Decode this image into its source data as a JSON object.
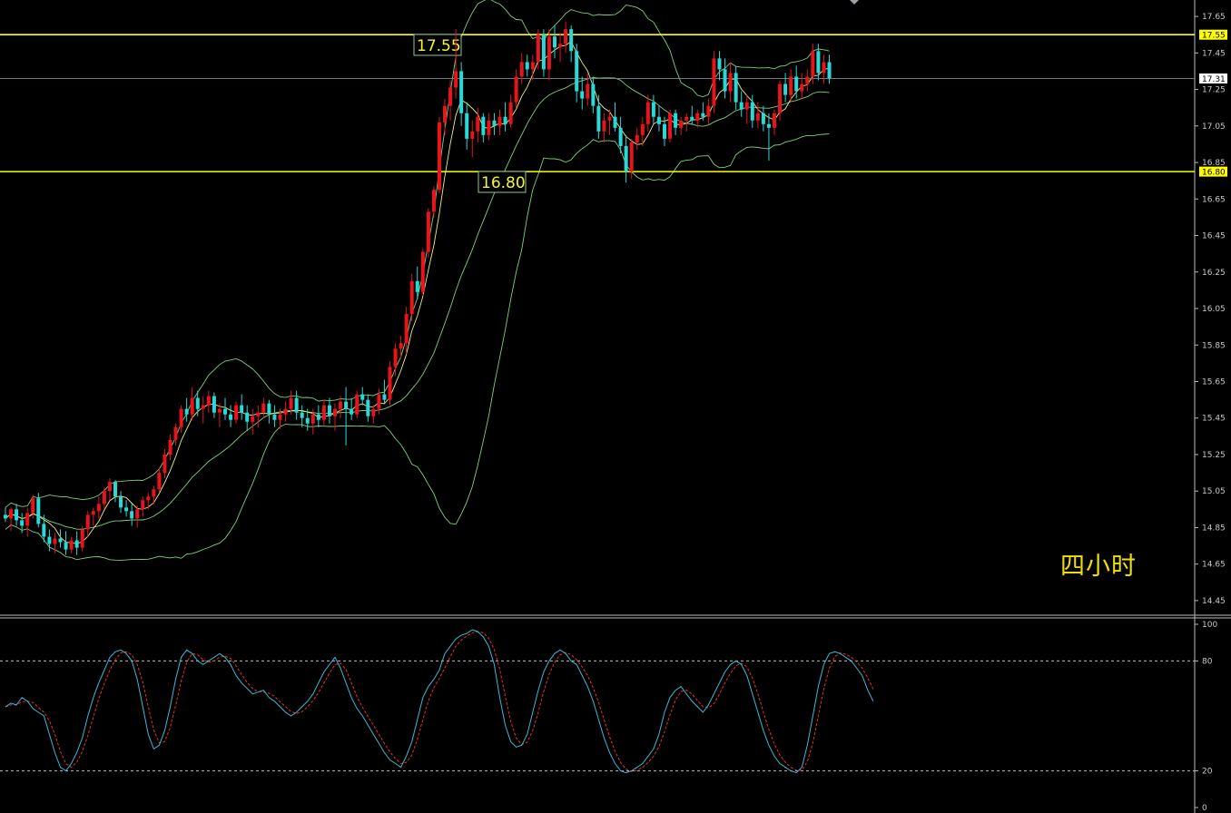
{
  "annotation": "四小时",
  "colors": {
    "background": "#000000",
    "bull": "#e8141c",
    "bear": "#2ad8d8",
    "bands": "#7ed07e",
    "mid": "#c0c060",
    "ma": "#f0f080",
    "level": "#ffff00",
    "stoch_k": "#3ab8d8",
    "stoch_d": "#e83030"
  },
  "chart_data": [
    {
      "type": "candlestick",
      "timeframe_label": "四小时",
      "ylim": [
        14.38,
        17.74
      ],
      "yticks": [
        "17.65",
        "17.45",
        "17.25",
        "17.05",
        "16.85",
        "16.65",
        "16.45",
        "16.25",
        "16.05",
        "15.85",
        "15.65",
        "15.45",
        "15.25",
        "15.05",
        "14.85",
        "14.65",
        "14.45"
      ],
      "horizontal_levels": [
        {
          "value": 17.55,
          "label": "17.55",
          "axis_tag": "17.55"
        },
        {
          "value": 16.8,
          "label": "16.80",
          "axis_tag": "16.80"
        }
      ],
      "current_price": "17.31",
      "current_value": 17.31,
      "candles": [
        [
          14.92,
          14.96,
          14.88,
          14.9
        ],
        [
          14.9,
          14.96,
          14.83,
          14.95
        ],
        [
          14.95,
          14.98,
          14.86,
          14.89
        ],
        [
          14.89,
          14.93,
          14.82,
          14.86
        ],
        [
          14.86,
          14.96,
          14.8,
          14.93
        ],
        [
          14.93,
          15.03,
          14.9,
          15.01
        ],
        [
          15.01,
          15.04,
          14.85,
          14.87
        ],
        [
          14.87,
          14.92,
          14.77,
          14.8
        ],
        [
          14.8,
          14.84,
          14.72,
          14.76
        ],
        [
          14.76,
          14.82,
          14.71,
          14.79
        ],
        [
          14.79,
          14.84,
          14.74,
          14.77
        ],
        [
          14.77,
          14.83,
          14.7,
          14.73
        ],
        [
          14.73,
          14.8,
          14.71,
          14.78
        ],
        [
          14.78,
          14.83,
          14.7,
          14.74
        ],
        [
          14.74,
          14.86,
          14.72,
          14.84
        ],
        [
          14.84,
          14.94,
          14.8,
          14.92
        ],
        [
          14.92,
          14.96,
          14.86,
          14.94
        ],
        [
          14.94,
          15.02,
          14.9,
          14.98
        ],
        [
          14.98,
          15.07,
          14.95,
          15.05
        ],
        [
          15.05,
          15.12,
          15.0,
          15.1
        ],
        [
          15.1,
          15.11,
          14.99,
          15.02
        ],
        [
          15.02,
          15.05,
          14.93,
          14.96
        ],
        [
          14.96,
          15.0,
          14.91,
          14.94
        ],
        [
          14.94,
          14.98,
          14.86,
          14.9
        ],
        [
          14.9,
          14.97,
          14.85,
          14.95
        ],
        [
          14.95,
          15.02,
          14.91,
          15.0
        ],
        [
          15.0,
          15.04,
          14.95,
          15.02
        ],
        [
          15.02,
          15.08,
          14.98,
          15.06
        ],
        [
          15.06,
          15.18,
          15.04,
          15.15
        ],
        [
          15.15,
          15.28,
          15.12,
          15.25
        ],
        [
          15.25,
          15.36,
          15.22,
          15.33
        ],
        [
          15.33,
          15.42,
          15.3,
          15.4
        ],
        [
          15.4,
          15.52,
          15.37,
          15.5
        ],
        [
          15.5,
          15.56,
          15.43,
          15.47
        ],
        [
          15.47,
          15.62,
          15.44,
          15.56
        ],
        [
          15.56,
          15.6,
          15.46,
          15.5
        ],
        [
          15.5,
          15.57,
          15.42,
          15.52
        ],
        [
          15.52,
          15.6,
          15.48,
          15.57
        ],
        [
          15.57,
          15.59,
          15.45,
          15.48
        ],
        [
          15.48,
          15.53,
          15.4,
          15.5
        ],
        [
          15.5,
          15.56,
          15.44,
          15.47
        ],
        [
          15.47,
          15.52,
          15.4,
          15.44
        ],
        [
          15.44,
          15.54,
          15.42,
          15.52
        ],
        [
          15.52,
          15.58,
          15.44,
          15.48
        ],
        [
          15.48,
          15.52,
          15.38,
          15.43
        ],
        [
          15.43,
          15.5,
          15.36,
          15.46
        ],
        [
          15.46,
          15.52,
          15.4,
          15.48
        ],
        [
          15.48,
          15.56,
          15.45,
          15.53
        ],
        [
          15.53,
          15.55,
          15.42,
          15.47
        ],
        [
          15.47,
          15.52,
          15.4,
          15.44
        ],
        [
          15.44,
          15.5,
          15.39,
          15.47
        ],
        [
          15.47,
          15.54,
          15.43,
          15.5
        ],
        [
          15.5,
          15.6,
          15.47,
          15.56
        ],
        [
          15.56,
          15.6,
          15.44,
          15.48
        ],
        [
          15.48,
          15.52,
          15.4,
          15.45
        ],
        [
          15.45,
          15.5,
          15.38,
          15.42
        ],
        [
          15.42,
          15.5,
          15.36,
          15.47
        ],
        [
          15.47,
          15.52,
          15.4,
          15.44
        ],
        [
          15.44,
          15.55,
          15.41,
          15.52
        ],
        [
          15.52,
          15.56,
          15.42,
          15.46
        ],
        [
          15.46,
          15.53,
          15.38,
          15.5
        ],
        [
          15.5,
          15.57,
          15.45,
          15.54
        ],
        [
          15.54,
          15.62,
          15.3,
          15.5
        ],
        [
          15.5,
          15.56,
          15.44,
          15.47
        ],
        [
          15.47,
          15.6,
          15.45,
          15.58
        ],
        [
          15.58,
          15.62,
          15.52,
          15.55
        ],
        [
          15.55,
          15.58,
          15.43,
          15.46
        ],
        [
          15.46,
          15.52,
          15.42,
          15.5
        ],
        [
          15.5,
          15.61,
          15.47,
          15.58
        ],
        [
          15.58,
          15.66,
          15.53,
          15.55
        ],
        [
          15.55,
          15.76,
          15.52,
          15.73
        ],
        [
          15.73,
          15.86,
          15.68,
          15.83
        ],
        [
          15.83,
          15.9,
          15.78,
          15.86
        ],
        [
          15.86,
          16.06,
          15.8,
          16.02
        ],
        [
          16.02,
          16.24,
          15.98,
          16.2
        ],
        [
          16.2,
          16.28,
          16.1,
          16.14
        ],
        [
          16.14,
          16.38,
          16.12,
          16.36
        ],
        [
          16.36,
          16.6,
          16.33,
          16.58
        ],
        [
          16.58,
          16.72,
          16.55,
          16.7
        ],
        [
          16.7,
          17.1,
          16.68,
          17.07
        ],
        [
          17.07,
          17.2,
          17.0,
          17.16
        ],
        [
          17.16,
          17.3,
          17.08,
          17.26
        ],
        [
          17.26,
          17.58,
          17.2,
          17.35
        ],
        [
          17.35,
          17.4,
          17.05,
          17.12
        ],
        [
          17.12,
          17.18,
          16.92,
          16.98
        ],
        [
          16.98,
          17.08,
          16.88,
          17.02
        ],
        [
          17.02,
          17.15,
          16.96,
          17.1
        ],
        [
          17.1,
          17.12,
          16.96,
          17.0
        ],
        [
          17.0,
          17.12,
          16.97,
          17.08
        ],
        [
          17.08,
          17.12,
          17.0,
          17.05
        ],
        [
          17.05,
          17.14,
          17.0,
          17.1
        ],
        [
          17.1,
          17.18,
          17.02,
          17.06
        ],
        [
          17.06,
          17.22,
          17.04,
          17.18
        ],
        [
          17.18,
          17.36,
          17.15,
          17.32
        ],
        [
          17.32,
          17.45,
          17.28,
          17.4
        ],
        [
          17.4,
          17.44,
          17.32,
          17.36
        ],
        [
          17.36,
          17.44,
          17.3,
          17.4
        ],
        [
          17.4,
          17.58,
          17.36,
          17.55
        ],
        [
          17.55,
          17.58,
          17.32,
          17.36
        ],
        [
          17.36,
          17.58,
          17.3,
          17.54
        ],
        [
          17.54,
          17.6,
          17.42,
          17.48
        ],
        [
          17.48,
          17.56,
          17.4,
          17.5
        ],
        [
          17.5,
          17.62,
          17.45,
          17.58
        ],
        [
          17.58,
          17.6,
          17.4,
          17.46
        ],
        [
          17.46,
          17.5,
          17.18,
          17.24
        ],
        [
          17.24,
          17.32,
          17.14,
          17.2
        ],
        [
          17.2,
          17.34,
          17.16,
          17.28
        ],
        [
          17.28,
          17.32,
          17.12,
          17.16
        ],
        [
          17.16,
          17.22,
          16.98,
          17.02
        ],
        [
          17.02,
          17.12,
          16.96,
          17.08
        ],
        [
          17.08,
          17.14,
          17.0,
          17.1
        ],
        [
          17.1,
          17.18,
          17.02,
          17.04
        ],
        [
          17.04,
          17.1,
          16.9,
          16.94
        ],
        [
          16.94,
          17.0,
          16.74,
          16.8
        ],
        [
          16.8,
          16.98,
          16.76,
          16.96
        ],
        [
          16.96,
          17.04,
          16.92,
          17.0
        ],
        [
          17.0,
          17.1,
          16.94,
          17.06
        ],
        [
          17.06,
          17.22,
          17.02,
          17.18
        ],
        [
          17.18,
          17.22,
          17.06,
          17.1
        ],
        [
          17.1,
          17.16,
          17.02,
          17.06
        ],
        [
          17.06,
          17.1,
          16.94,
          16.98
        ],
        [
          16.98,
          17.14,
          16.96,
          17.12
        ],
        [
          17.12,
          17.14,
          17.0,
          17.04
        ],
        [
          17.04,
          17.1,
          17.0,
          17.08
        ],
        [
          17.08,
          17.12,
          17.02,
          17.1
        ],
        [
          17.1,
          17.16,
          17.06,
          17.08
        ],
        [
          17.08,
          17.14,
          17.04,
          17.12
        ],
        [
          17.12,
          17.18,
          17.08,
          17.1
        ],
        [
          17.1,
          17.2,
          17.06,
          17.16
        ],
        [
          17.16,
          17.46,
          17.12,
          17.42
        ],
        [
          17.42,
          17.46,
          17.3,
          17.36
        ],
        [
          17.36,
          17.42,
          17.2,
          17.24
        ],
        [
          17.24,
          17.4,
          17.18,
          17.34
        ],
        [
          17.34,
          17.38,
          17.14,
          17.18
        ],
        [
          17.18,
          17.24,
          17.1,
          17.14
        ],
        [
          17.14,
          17.22,
          17.06,
          17.18
        ],
        [
          17.18,
          17.22,
          17.04,
          17.08
        ],
        [
          17.08,
          17.18,
          17.04,
          17.12
        ],
        [
          17.12,
          17.16,
          17.02,
          17.06
        ],
        [
          17.06,
          17.12,
          16.86,
          17.04
        ],
        [
          17.04,
          17.14,
          17.0,
          17.12
        ],
        [
          17.12,
          17.3,
          17.08,
          17.28
        ],
        [
          17.28,
          17.34,
          17.18,
          17.22
        ],
        [
          17.22,
          17.36,
          17.18,
          17.32
        ],
        [
          17.32,
          17.38,
          17.2,
          17.24
        ],
        [
          17.24,
          17.34,
          17.2,
          17.28
        ],
        [
          17.28,
          17.36,
          17.24,
          17.32
        ],
        [
          17.32,
          17.5,
          17.28,
          17.46
        ],
        [
          17.46,
          17.5,
          17.3,
          17.34
        ],
        [
          17.34,
          17.44,
          17.28,
          17.4
        ],
        [
          17.4,
          17.44,
          17.28,
          17.31
        ]
      ],
      "stochastic": {
        "ylim": [
          0,
          100
        ],
        "levels": [
          80,
          20
        ],
        "ticks": [
          "100",
          "80",
          "20",
          "0"
        ],
        "k": [
          55,
          57,
          56,
          60,
          58,
          54,
          52,
          50,
          40,
          30,
          22,
          20,
          24,
          30,
          38,
          50,
          60,
          68,
          75,
          82,
          85,
          86,
          84,
          80,
          70,
          55,
          40,
          32,
          34,
          42,
          55,
          70,
          82,
          86,
          84,
          80,
          78,
          80,
          82,
          84,
          82,
          78,
          72,
          68,
          65,
          62,
          63,
          64,
          60,
          58,
          55,
          52,
          50,
          52,
          55,
          58,
          62,
          68,
          74,
          78,
          82,
          76,
          68,
          60,
          54,
          50,
          45,
          40,
          35,
          30,
          26,
          24,
          22,
          28,
          36,
          48,
          60,
          66,
          70,
          75,
          84,
          88,
          92,
          94,
          95,
          97,
          96,
          93,
          88,
          78,
          60,
          45,
          36,
          33,
          34,
          40,
          52,
          64,
          74,
          80,
          84,
          86,
          84,
          80,
          78,
          72,
          66,
          58,
          48,
          38,
          30,
          24,
          20,
          19,
          20,
          22,
          24,
          28,
          32,
          40,
          52,
          60,
          64,
          66,
          62,
          58,
          55,
          52,
          56,
          62,
          68,
          74,
          78,
          80,
          78,
          72,
          62,
          52,
          42,
          34,
          28,
          24,
          22,
          20,
          19,
          22,
          34,
          50,
          66,
          78,
          84,
          85,
          84,
          82,
          80,
          76,
          72,
          64,
          58
        ]
      }
    }
  ]
}
